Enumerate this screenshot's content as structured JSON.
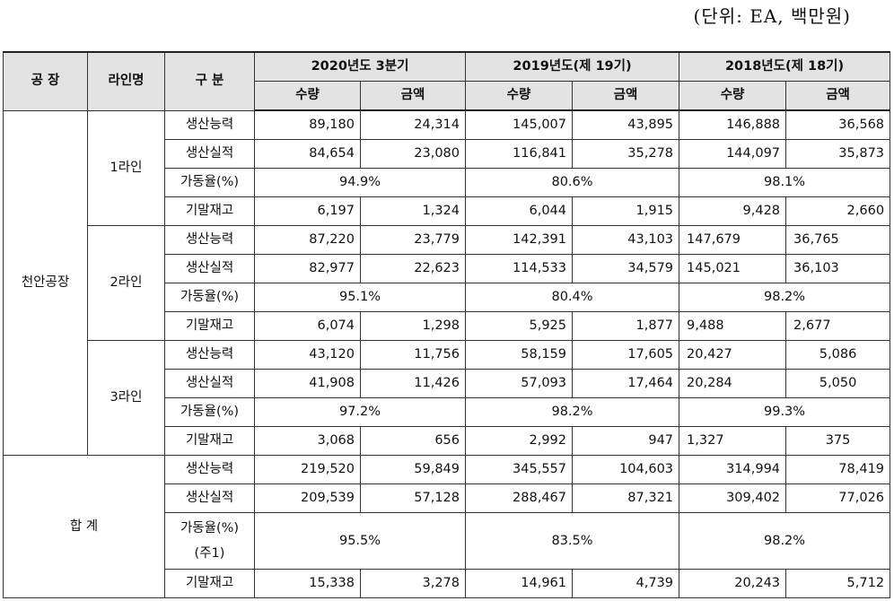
{
  "unit_note": "(단위: EA, 백만원)",
  "header": {
    "factory": "공 장",
    "line": "라인명",
    "category": "구 분",
    "periods": [
      "2020년도 3분기",
      "2019년도(제 19기)",
      "2018년도(제 18기)"
    ],
    "qty": "수량",
    "amount": "금액"
  },
  "factory_name": "천안공장",
  "lines": [
    {
      "name": "1라인",
      "capacity": {
        "label": "생산능력",
        "v": [
          "89,180",
          "24,314",
          "145,007",
          "43,895",
          "146,888",
          "36,568"
        ]
      },
      "actual": {
        "label": "생산실적",
        "v": [
          "84,654",
          "23,080",
          "116,841",
          "35,278",
          "144,097",
          "35,873"
        ]
      },
      "util": {
        "label": "가동율(%)",
        "v": [
          "94.9%",
          "80.6%",
          "98.1%"
        ]
      },
      "stock": {
        "label": "기말재고",
        "v": [
          "6,197",
          "1,324",
          "6,044",
          "1,915",
          "9,428",
          "2,660"
        ]
      }
    },
    {
      "name": "2라인",
      "capacity": {
        "label": "생산능력",
        "v": [
          "87,220",
          "23,779",
          "142,391",
          "43,103",
          "147,679",
          "36,765"
        ]
      },
      "actual": {
        "label": "생산실적",
        "v": [
          "82,977",
          "22,623",
          "114,533",
          "34,579",
          "145,021",
          "36,103"
        ]
      },
      "util": {
        "label": "가동율(%)",
        "v": [
          "95.1%",
          "80.4%",
          "98.2%"
        ]
      },
      "stock": {
        "label": "기말재고",
        "v": [
          "6,074",
          "1,298",
          "5,925",
          "1,877",
          "9,488",
          "2,677"
        ]
      }
    },
    {
      "name": "3라인",
      "capacity": {
        "label": "생산능력",
        "v": [
          "43,120",
          "11,756",
          "58,159",
          "17,605",
          "20,427",
          "5,086"
        ]
      },
      "actual": {
        "label": "생산실적",
        "v": [
          "41,908",
          "11,426",
          "57,093",
          "17,464",
          "20,284",
          "5,050"
        ]
      },
      "util": {
        "label": "가동율(%)",
        "v": [
          "97.2%",
          "98.2%",
          "99.3%"
        ]
      },
      "stock": {
        "label": "기말재고",
        "v": [
          "3,068",
          "656",
          "2,992",
          "947",
          "1,327",
          "375"
        ]
      }
    }
  ],
  "total": {
    "name": "합 계",
    "capacity": {
      "label": "생산능력",
      "v": [
        "219,520",
        "59,849",
        "345,557",
        "104,603",
        "314,994",
        "78,419"
      ]
    },
    "actual": {
      "label": "생산실적",
      "v": [
        "209,539",
        "57,128",
        "288,467",
        "87,321",
        "309,402",
        "77,026"
      ]
    },
    "util": {
      "label": "가동율(%)",
      "note": "(주1)",
      "v": [
        "95.5%",
        "83.5%",
        "98.2%"
      ]
    },
    "stock": {
      "label": "기말재고",
      "v": [
        "15,338",
        "3,278",
        "14,961",
        "4,739",
        "20,243",
        "5,712"
      ]
    }
  }
}
